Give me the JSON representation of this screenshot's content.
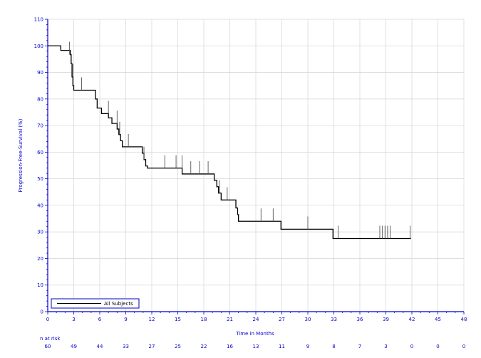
{
  "chart_data": {
    "type": "line",
    "title": "",
    "xlabel": "Time in Months",
    "ylabel": "Progression-Free-Survival (%)",
    "xlim": [
      0,
      48
    ],
    "ylim": [
      0,
      110
    ],
    "x_ticks": [
      0,
      3,
      6,
      9,
      12,
      15,
      18,
      21,
      24,
      27,
      30,
      33,
      36,
      39,
      42,
      45,
      48
    ],
    "y_ticks": [
      0,
      10,
      20,
      30,
      40,
      50,
      60,
      70,
      80,
      90,
      100,
      110
    ],
    "grid": true,
    "legend_position": "bottom-left",
    "series": [
      {
        "name": "All Subjects",
        "color": "#000000",
        "steps": [
          [
            0,
            100
          ],
          [
            1.5,
            98.3
          ],
          [
            2.6,
            96.7
          ],
          [
            2.7,
            93.3
          ],
          [
            2.8,
            88.3
          ],
          [
            2.9,
            85.0
          ],
          [
            3.0,
            83.3
          ],
          [
            5.5,
            80.0
          ],
          [
            5.7,
            76.6
          ],
          [
            6.2,
            74.5
          ],
          [
            7.0,
            72.9
          ],
          [
            7.4,
            70.8
          ],
          [
            8.0,
            68.7
          ],
          [
            8.2,
            66.6
          ],
          [
            8.4,
            64.3
          ],
          [
            8.6,
            62.0
          ],
          [
            10.9,
            59.6
          ],
          [
            11.1,
            57.2
          ],
          [
            11.3,
            54.8
          ],
          [
            11.5,
            54.0
          ],
          [
            15.5,
            51.8
          ],
          [
            19.2,
            49.4
          ],
          [
            19.5,
            47.0
          ],
          [
            19.7,
            44.6
          ],
          [
            20.0,
            42.0
          ],
          [
            21.7,
            39.0
          ],
          [
            21.9,
            36.5
          ],
          [
            22.0,
            34.0
          ],
          [
            26.9,
            31.0
          ],
          [
            32.9,
            27.5
          ],
          [
            41.9,
            27.5
          ]
        ],
        "censored": [
          [
            2.5,
            96.7
          ],
          [
            2.9,
            88.3
          ],
          [
            3.9,
            83.3
          ],
          [
            7.0,
            74.5
          ],
          [
            8.0,
            70.8
          ],
          [
            8.3,
            66.6
          ],
          [
            9.3,
            62.0
          ],
          [
            11.1,
            57.2
          ],
          [
            13.5,
            54.0
          ],
          [
            14.8,
            54.0
          ],
          [
            15.5,
            54.0
          ],
          [
            16.5,
            51.8
          ],
          [
            17.5,
            51.8
          ],
          [
            18.5,
            51.8
          ],
          [
            19.8,
            44.6
          ],
          [
            20.7,
            42.0
          ],
          [
            24.6,
            34.0
          ],
          [
            26.0,
            34.0
          ],
          [
            30.0,
            31.0
          ],
          [
            33.5,
            27.5
          ],
          [
            38.3,
            27.5
          ],
          [
            38.6,
            27.5
          ],
          [
            38.9,
            27.5
          ],
          [
            39.2,
            27.5
          ],
          [
            39.5,
            27.5
          ],
          [
            41.8,
            27.5
          ]
        ]
      }
    ],
    "risk_table": {
      "label": "n at risk",
      "times": [
        0,
        3,
        6,
        9,
        12,
        15,
        18,
        21,
        24,
        27,
        30,
        33,
        36,
        39,
        42,
        45,
        48
      ],
      "counts": [
        "60",
        "49",
        "44",
        "33",
        "27",
        "25",
        "22",
        "16",
        "13",
        "11",
        "9",
        "8",
        "7",
        "3",
        "0",
        "0",
        "0"
      ]
    }
  }
}
